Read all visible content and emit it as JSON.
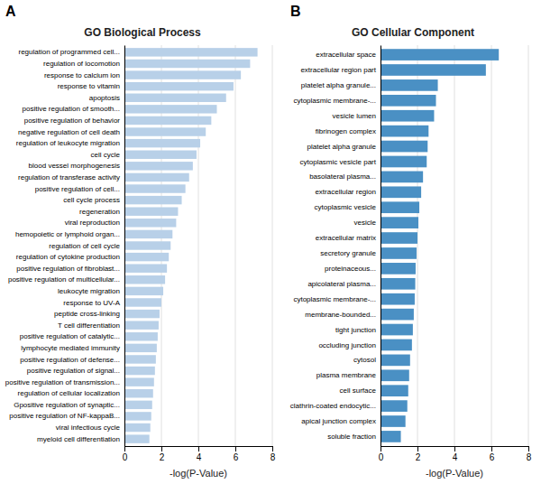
{
  "chart_data": [
    {
      "type": "bar",
      "orientation": "horizontal",
      "title": "GO Biological Process",
      "annotations": [
        "A"
      ],
      "xlabel": "-log(P-Value)",
      "xlim": [
        0,
        8
      ],
      "xticks": [
        0,
        2,
        4,
        6,
        8
      ],
      "grid": true,
      "color": "#b8d0e8",
      "categories": [
        "regulation of programmed cell...",
        "regulation of locomotion",
        "response to calcium ion",
        "response to vitamin",
        "apoptosis",
        "positive regulation of smooth...",
        "positive regulation of behavior",
        "negative regulation of cell death",
        "regulation of leukocyte migration",
        "cell cycle",
        "blood vessel morphogenesis",
        "regulation of transferase activity",
        "positive regulation of cell...",
        "cell cycle process",
        "regeneration",
        "viral reproduction",
        "hemopoietic or lymphoid organ...",
        "regulation of cell cycle",
        "regulation of cytokine production",
        "positive regulation of fibroblast...",
        "positive regulation of multicellular...",
        "leukocyte migration",
        "response to UV-A",
        "peptide cross-linking",
        "T cell differentiation",
        "positive regulation of catalytic...",
        "lymphocyte mediated immunity",
        "positive regulation of defense...",
        "positive regulation of signal...",
        "positive regulation of transmission...",
        "regulation of cellular localization",
        "Gpositive regulation of synaptic...",
        "positive regulation of NF-kappaB...",
        "viral infectious cycle",
        "myeloid cell differentiation"
      ],
      "values": [
        7.2,
        6.8,
        6.3,
        5.9,
        5.5,
        5.0,
        4.7,
        4.4,
        4.1,
        3.9,
        3.7,
        3.5,
        3.3,
        3.1,
        2.9,
        2.8,
        2.6,
        2.5,
        2.4,
        2.3,
        2.2,
        2.1,
        2.0,
        1.9,
        1.85,
        1.8,
        1.75,
        1.7,
        1.65,
        1.6,
        1.55,
        1.5,
        1.45,
        1.4,
        1.35
      ]
    },
    {
      "type": "bar",
      "orientation": "horizontal",
      "title": "GO Cellular Component",
      "annotations": [
        "B"
      ],
      "xlabel": "-log(P-Value)",
      "xlim": [
        0,
        8
      ],
      "xticks": [
        0,
        2,
        4,
        6,
        8
      ],
      "grid": true,
      "color": "#4a90c4",
      "categories": [
        "extracellular space",
        "extracellular region part",
        "platelet alpha granule...",
        "cytoplasmic membrane-...",
        "vesicle lumen",
        "fibrinogen complex",
        "platelet alpha granule",
        "cytoplasmic vesicle part",
        "basolateral plasma...",
        "extracellular region",
        "cytoplasmic vesicle",
        "vesicle",
        "extracellular matrix",
        "secretory granule",
        "proteinaceous...",
        "apicolateral plasma...",
        "cytoplasmic membrane-...",
        "membrane-bounded...",
        "tight junction",
        "occluding junction",
        "cytosol",
        "plasma membrane",
        "cell surface",
        "clathrin-coated endocytic...",
        "apical junction complex",
        "soluble fraction"
      ],
      "values": [
        6.4,
        5.7,
        3.1,
        3.0,
        2.9,
        2.6,
        2.55,
        2.5,
        2.3,
        2.2,
        2.1,
        2.05,
        2.0,
        1.95,
        1.9,
        1.88,
        1.85,
        1.8,
        1.75,
        1.7,
        1.6,
        1.55,
        1.5,
        1.45,
        1.35,
        1.1
      ]
    }
  ]
}
